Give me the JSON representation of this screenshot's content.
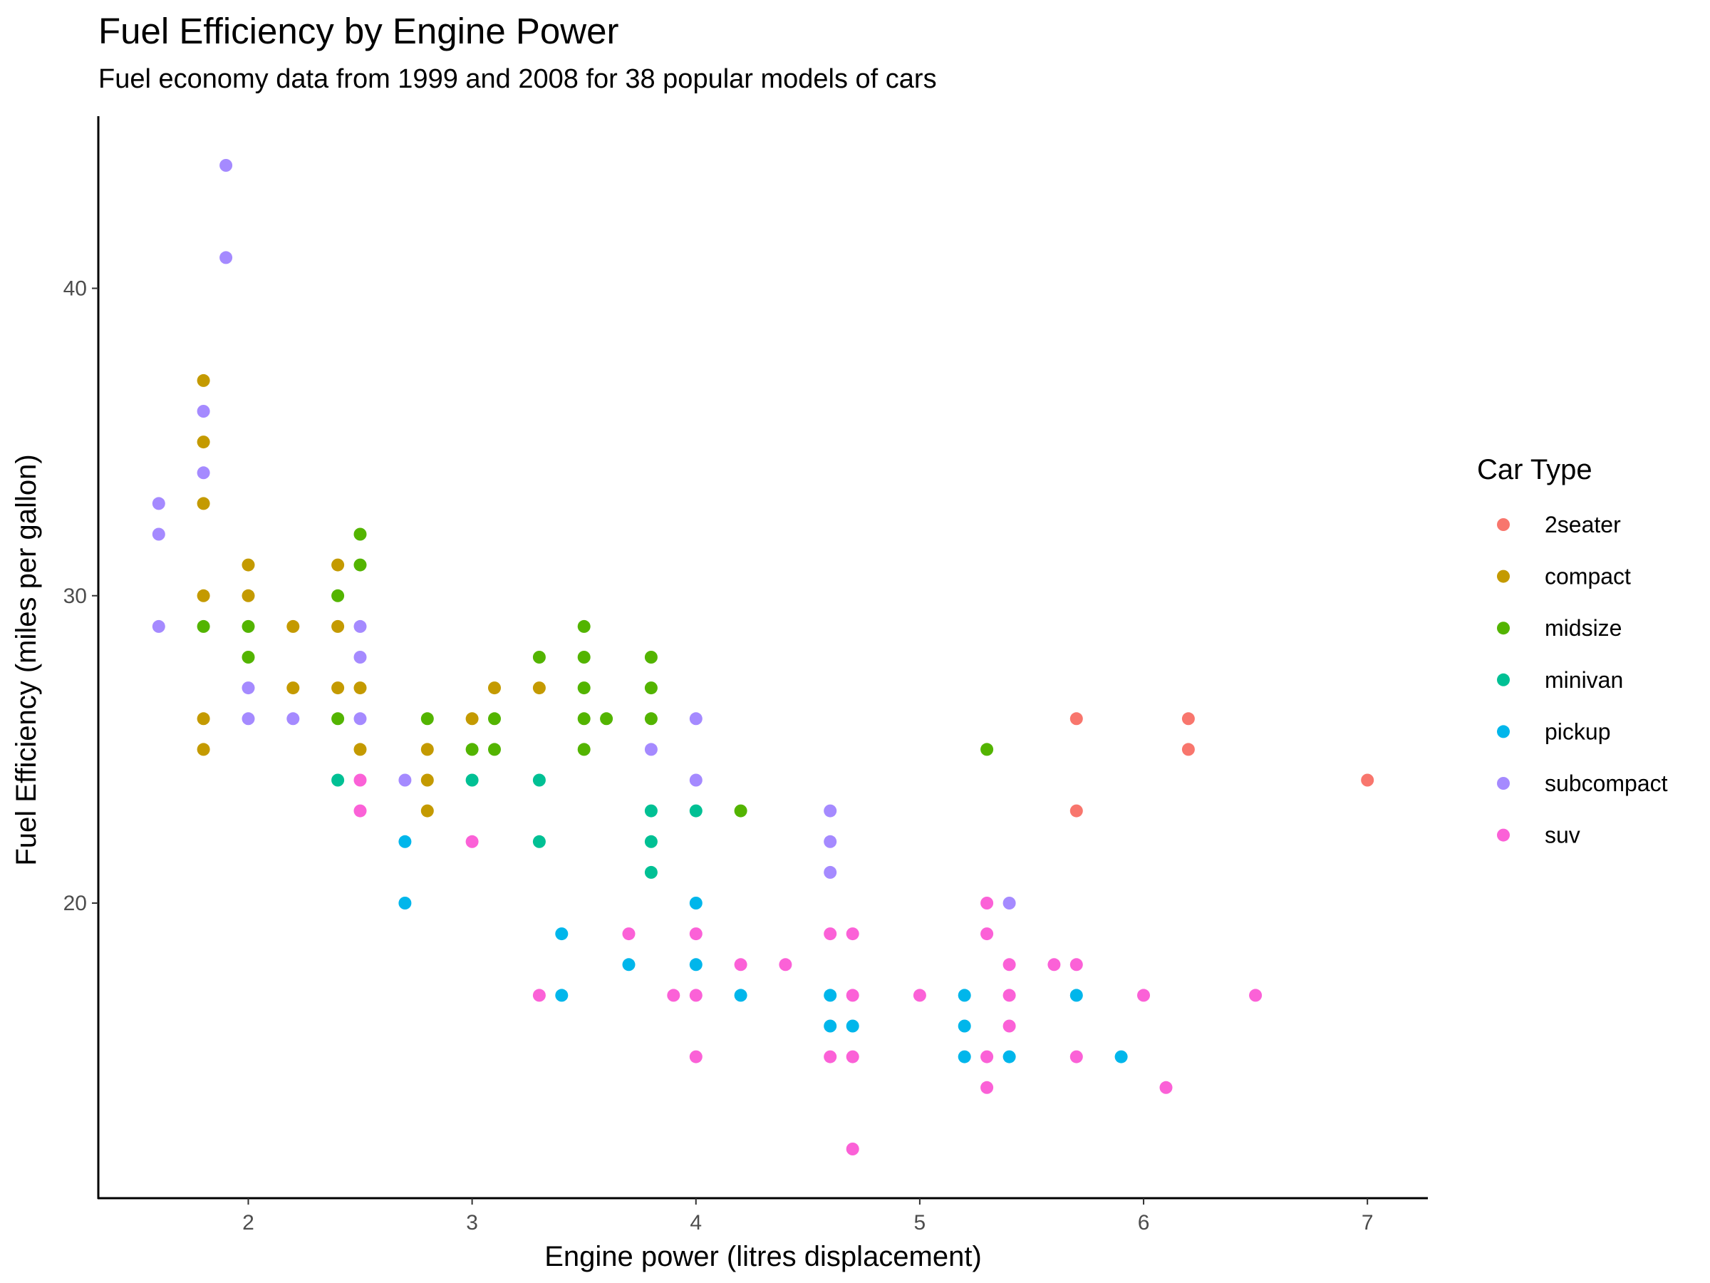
{
  "chart_data": {
    "type": "scatter",
    "title": "Fuel Efficiency by Engine Power",
    "subtitle": "Fuel economy data from 1999 and 2008 for 38 popular models of cars",
    "xlabel": "Engine power (litres displacement)",
    "ylabel": "Fuel Efficiency (miles per gallon)",
    "xlim": [
      1.33,
      7.27
    ],
    "ylim": [
      10.4,
      45.6
    ],
    "x_ticks": [
      2,
      3,
      4,
      5,
      6,
      7
    ],
    "y_ticks": [
      20,
      30,
      40
    ],
    "grid": false,
    "legend": {
      "title": "Car Type",
      "position": "right"
    },
    "series": [
      {
        "name": "2seater",
        "color": "#F8766D",
        "points": [
          [
            5.7,
            26
          ],
          [
            5.7,
            23
          ],
          [
            6.2,
            26
          ],
          [
            6.2,
            25
          ],
          [
            7.0,
            24
          ]
        ]
      },
      {
        "name": "compact",
        "color": "#C49A00",
        "points": [
          [
            1.8,
            37
          ],
          [
            1.8,
            35
          ],
          [
            1.8,
            33
          ],
          [
            1.8,
            30
          ],
          [
            1.8,
            26
          ],
          [
            1.8,
            25
          ],
          [
            2.0,
            31
          ],
          [
            2.0,
            30
          ],
          [
            2.2,
            29
          ],
          [
            2.2,
            27
          ],
          [
            2.4,
            31
          ],
          [
            2.4,
            29
          ],
          [
            2.4,
            27
          ],
          [
            2.5,
            27
          ],
          [
            2.5,
            25
          ],
          [
            2.8,
            25
          ],
          [
            2.8,
            24
          ],
          [
            2.8,
            23
          ],
          [
            3.0,
            26
          ],
          [
            3.1,
            27
          ],
          [
            3.3,
            27
          ]
        ]
      },
      {
        "name": "midsize",
        "color": "#53B400",
        "points": [
          [
            1.8,
            29
          ],
          [
            2.0,
            29
          ],
          [
            2.0,
            28
          ],
          [
            2.4,
            30
          ],
          [
            2.4,
            26
          ],
          [
            2.5,
            32
          ],
          [
            2.5,
            31
          ],
          [
            2.8,
            26
          ],
          [
            3.0,
            25
          ],
          [
            3.1,
            26
          ],
          [
            3.1,
            25
          ],
          [
            3.3,
            28
          ],
          [
            3.5,
            29
          ],
          [
            3.5,
            28
          ],
          [
            3.5,
            27
          ],
          [
            3.5,
            26
          ],
          [
            3.5,
            25
          ],
          [
            3.6,
            26
          ],
          [
            3.8,
            28
          ],
          [
            3.8,
            27
          ],
          [
            3.8,
            26
          ],
          [
            4.2,
            23
          ],
          [
            5.3,
            25
          ]
        ]
      },
      {
        "name": "minivan",
        "color": "#00C094",
        "points": [
          [
            2.4,
            24
          ],
          [
            3.0,
            24
          ],
          [
            3.3,
            24
          ],
          [
            3.3,
            22
          ],
          [
            3.8,
            23
          ],
          [
            3.8,
            22
          ],
          [
            3.8,
            21
          ],
          [
            4.0,
            23
          ]
        ]
      },
      {
        "name": "pickup",
        "color": "#00B6EB",
        "points": [
          [
            2.7,
            22
          ],
          [
            2.7,
            20
          ],
          [
            3.4,
            19
          ],
          [
            3.4,
            17
          ],
          [
            3.7,
            18
          ],
          [
            4.0,
            20
          ],
          [
            4.0,
            18
          ],
          [
            4.2,
            17
          ],
          [
            4.6,
            17
          ],
          [
            4.6,
            16
          ],
          [
            4.7,
            16
          ],
          [
            5.2,
            17
          ],
          [
            5.2,
            16
          ],
          [
            5.2,
            15
          ],
          [
            5.4,
            15
          ],
          [
            5.7,
            17
          ],
          [
            5.9,
            15
          ]
        ]
      },
      {
        "name": "subcompact",
        "color": "#A58AFF",
        "points": [
          [
            1.6,
            33
          ],
          [
            1.6,
            32
          ],
          [
            1.6,
            29
          ],
          [
            1.8,
            36
          ],
          [
            1.8,
            34
          ],
          [
            1.9,
            44
          ],
          [
            1.9,
            41
          ],
          [
            2.0,
            27
          ],
          [
            2.0,
            26
          ],
          [
            2.2,
            26
          ],
          [
            2.5,
            29
          ],
          [
            2.5,
            28
          ],
          [
            2.5,
            26
          ],
          [
            2.7,
            24
          ],
          [
            3.8,
            25
          ],
          [
            4.0,
            26
          ],
          [
            4.0,
            24
          ],
          [
            4.6,
            23
          ],
          [
            4.6,
            22
          ],
          [
            4.6,
            21
          ],
          [
            5.4,
            20
          ]
        ]
      },
      {
        "name": "suv",
        "color": "#FB61D7",
        "points": [
          [
            2.5,
            24
          ],
          [
            2.5,
            23
          ],
          [
            3.0,
            22
          ],
          [
            3.3,
            17
          ],
          [
            3.7,
            19
          ],
          [
            3.9,
            17
          ],
          [
            4.0,
            19
          ],
          [
            4.0,
            17
          ],
          [
            4.0,
            15
          ],
          [
            4.2,
            18
          ],
          [
            4.4,
            18
          ],
          [
            4.6,
            19
          ],
          [
            4.6,
            15
          ],
          [
            4.7,
            19
          ],
          [
            4.7,
            17
          ],
          [
            4.7,
            15
          ],
          [
            4.7,
            12
          ],
          [
            5.0,
            17
          ],
          [
            5.3,
            20
          ],
          [
            5.3,
            19
          ],
          [
            5.3,
            15
          ],
          [
            5.3,
            14
          ],
          [
            5.4,
            18
          ],
          [
            5.4,
            17
          ],
          [
            5.4,
            16
          ],
          [
            5.6,
            18
          ],
          [
            5.7,
            18
          ],
          [
            5.7,
            15
          ],
          [
            6.0,
            17
          ],
          [
            6.1,
            14
          ],
          [
            6.5,
            17
          ]
        ]
      }
    ]
  }
}
